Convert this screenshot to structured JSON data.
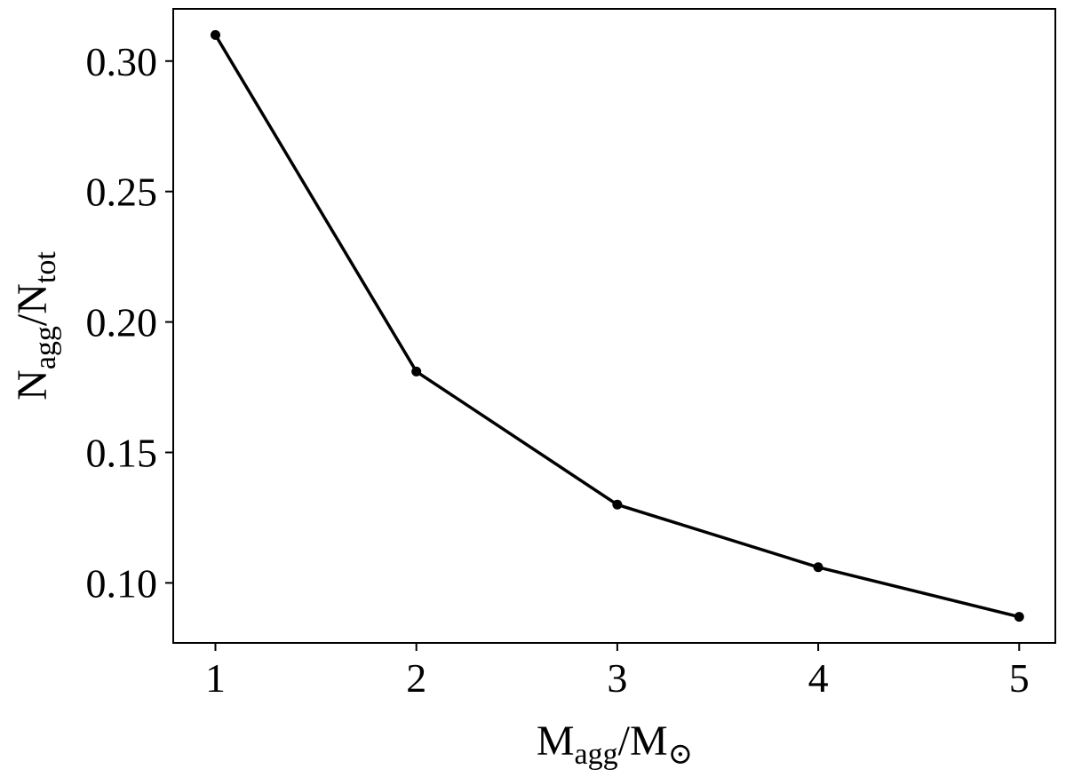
{
  "chart_data": {
    "type": "line",
    "title": "",
    "x": [
      1,
      2,
      3,
      4,
      5
    ],
    "series": [
      {
        "values": [
          0.31,
          0.181,
          0.13,
          0.106,
          0.087
        ],
        "color": "#000000",
        "marker": "circle"
      }
    ],
    "xlabel": {
      "main": "M",
      "sub": "agg",
      "mid": "/M",
      "sub2": "⊙"
    },
    "ylabel": {
      "main": "N",
      "sub": "agg",
      "mid": "/N",
      "sub2": "tot"
    },
    "xticks": [
      1,
      2,
      3,
      4,
      5
    ],
    "xtick_labels": [
      "1",
      "2",
      "3",
      "4",
      "5"
    ],
    "yticks": [
      0.1,
      0.15,
      0.2,
      0.25,
      0.3
    ],
    "ytick_labels": [
      "0.10",
      "0.15",
      "0.20",
      "0.25",
      "0.30"
    ],
    "xlim": [
      0.79,
      5.18
    ],
    "ylim": [
      0.077,
      0.32
    ],
    "grid": false,
    "legend": "none"
  }
}
